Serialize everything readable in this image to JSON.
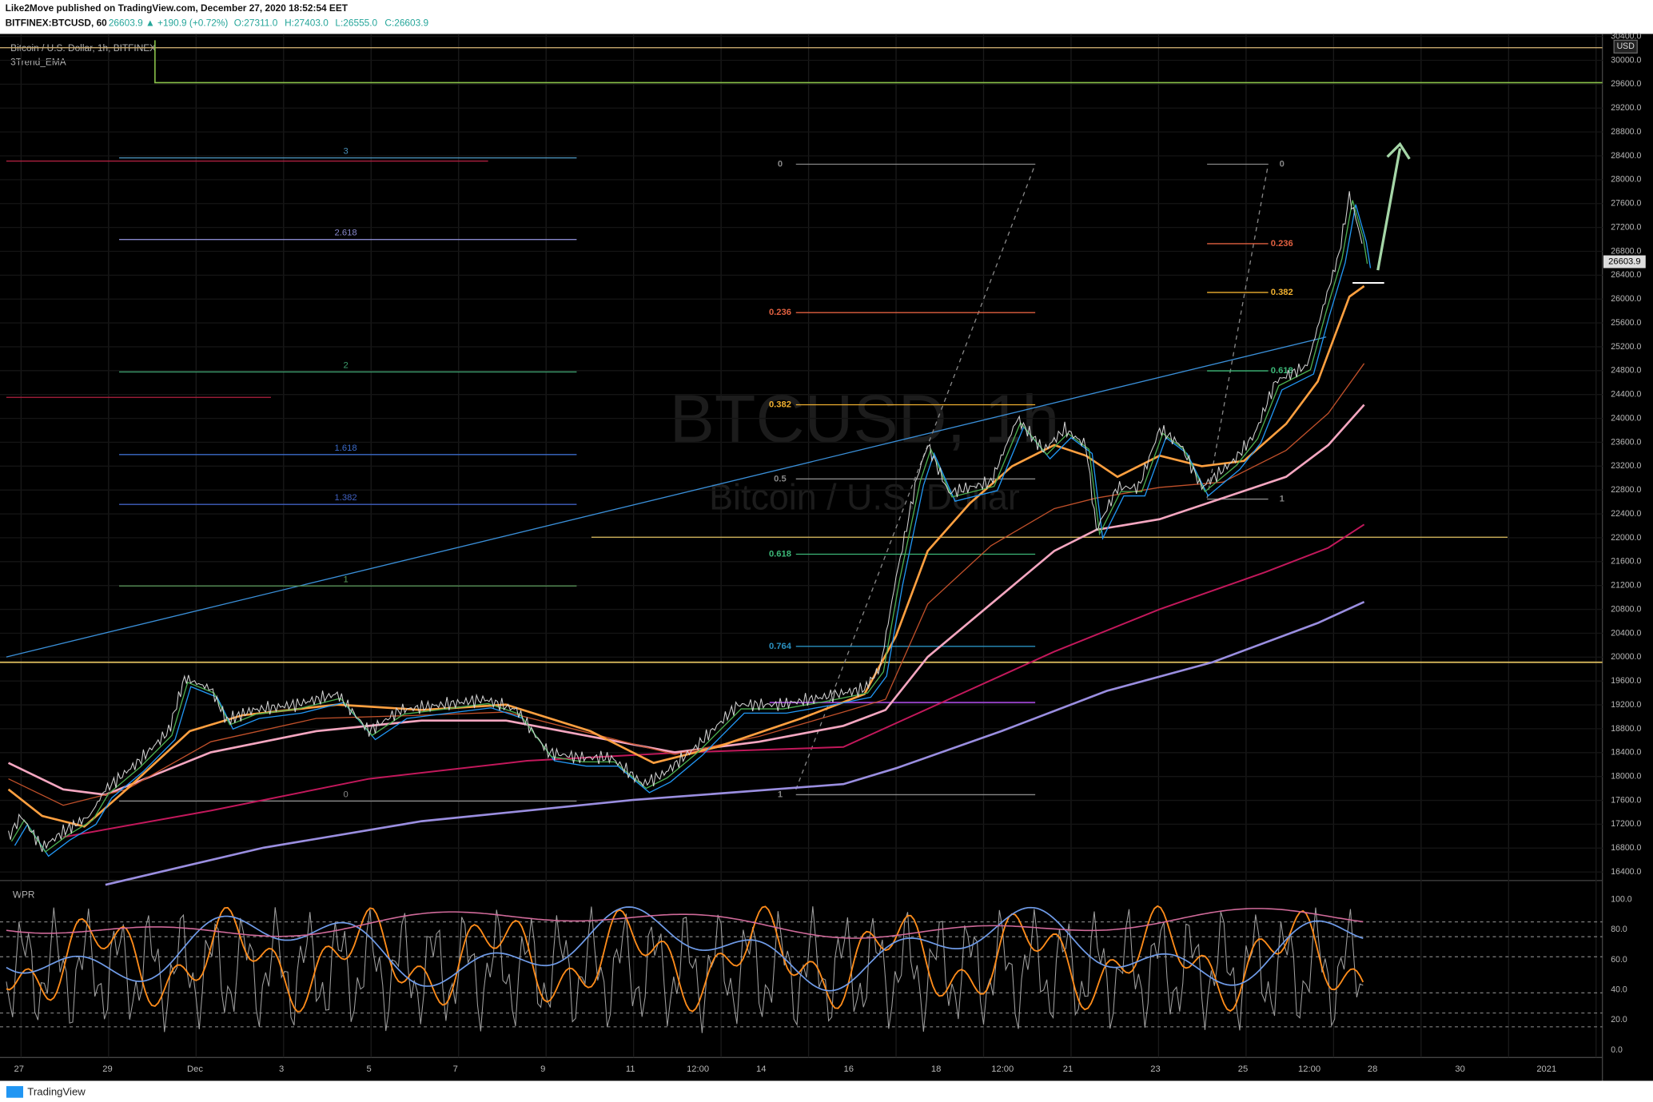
{
  "header": {
    "publisher": "Like2Move published on TradingView.com, December 27, 2020 18:52:54 EET",
    "symbol": "BITFINEX:BTCUSD, 60",
    "change": "26603.9 ▲ +190.9 (+0.72%)",
    "open": "O:27311.0",
    "high": "H:27403.0",
    "low": "L:26555.0",
    "close": "C:26603.9"
  },
  "legend": {
    "title": "Bitcoin / U.S. Dollar, 1h, BITFINEX",
    "indicator": "3Trend_EMA"
  },
  "watermark": {
    "symbol": "BTCUSD, 1h",
    "description": "Bitcoin / U.S. Dollar"
  },
  "price_axis": {
    "currency": "USD",
    "last_price": "26603.9",
    "ticks": [
      "30400.0",
      "30000.0",
      "29600.0",
      "29200.0",
      "28800.0",
      "28400.0",
      "28000.0",
      "27600.0",
      "27200.0",
      "26800.0",
      "26400.0",
      "26000.0",
      "25600.0",
      "25200.0",
      "24800.0",
      "24400.0",
      "24000.0",
      "23600.0",
      "23200.0",
      "22800.0",
      "22400.0",
      "22000.0",
      "21600.0",
      "21200.0",
      "20800.0",
      "20400.0",
      "20000.0",
      "19600.0",
      "19200.0",
      "18800.0",
      "18400.0",
      "18000.0",
      "17600.0",
      "17200.0",
      "16800.0",
      "16400.0"
    ]
  },
  "time_axis": {
    "ticks": [
      "27",
      "29",
      "Dec",
      "3",
      "5",
      "7",
      "9",
      "11",
      "12:00",
      "14",
      "16",
      "18",
      "12:00",
      "21",
      "23",
      "25",
      "12:00",
      "28",
      "30",
      "2021"
    ]
  },
  "wpr": {
    "label": "WPR",
    "ticks": [
      "100.0",
      "80.0",
      "60.0",
      "40.0",
      "20.0",
      "0.0"
    ]
  },
  "fib_levels": {
    "left": [
      "3",
      "2.618",
      "2",
      "1.618",
      "1.382",
      "1",
      "0"
    ],
    "middle": [
      "0",
      "0.236",
      "0.382",
      "0.5",
      "0.618",
      "0.764",
      "1"
    ],
    "right": [
      "0",
      "0.236",
      "0.382",
      "0.618",
      "1"
    ]
  },
  "footer": {
    "brand": "TradingView"
  }
}
